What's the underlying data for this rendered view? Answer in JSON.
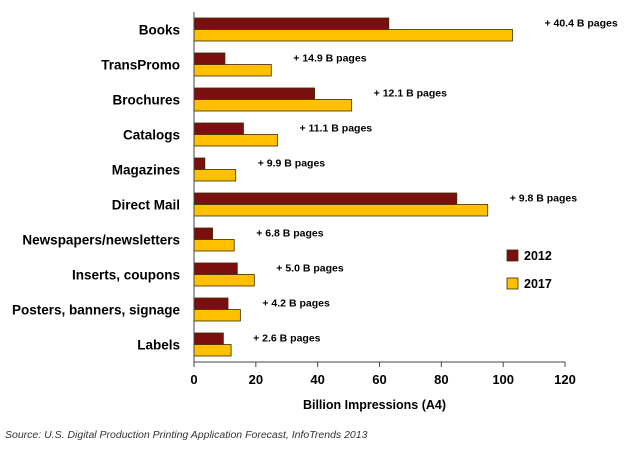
{
  "chart_data": {
    "type": "bar",
    "orientation": "horizontal",
    "categories": [
      "Books",
      "TransPromo",
      "Brochures",
      "Catalogs",
      "Magazines",
      "Direct Mail",
      "Newspapers/newsletters",
      "Inserts, coupons",
      "Posters, banners, signage",
      "Labels"
    ],
    "series": [
      {
        "name": "2012",
        "color": "#7b0f0f",
        "values": [
          63,
          10,
          39,
          16,
          3.5,
          85,
          6,
          14,
          11,
          9.5
        ]
      },
      {
        "name": "2017",
        "color": "#ffc000",
        "values": [
          103,
          25,
          51,
          27,
          13.5,
          95,
          13,
          19.5,
          15,
          12
        ]
      }
    ],
    "annotations": [
      "+ 40.4 B pages",
      "+ 14.9 B pages",
      "+ 12.1 B pages",
      "+ 11.1 B pages",
      "+ 9.9 B pages",
      "+ 9.8 B pages",
      "+ 6.8 B pages",
      "+ 5.0 B pages",
      "+ 4.2 B pages",
      "+ 2.6 B pages"
    ],
    "xlabel": "Billion Impressions (A4)",
    "xlim": [
      0,
      120
    ],
    "xticks": [
      0,
      20,
      40,
      60,
      80,
      100,
      120
    ],
    "grid": false,
    "legend_position": "right"
  },
  "source": "Source: U.S. Digital Production Printing Application Forecast, InfoTrends 2013"
}
